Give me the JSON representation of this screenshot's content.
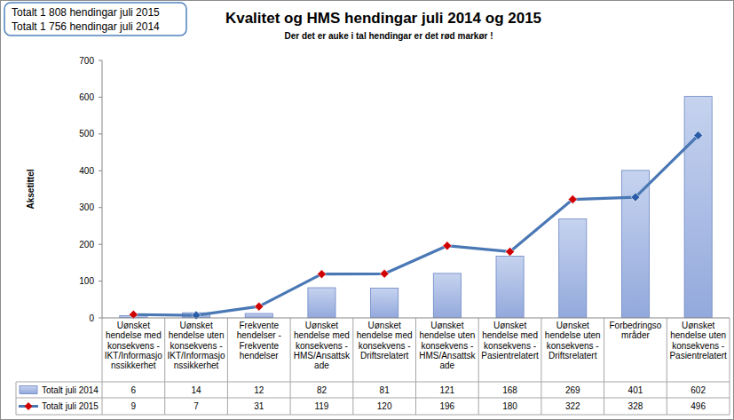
{
  "chart_data": {
    "type": "bar",
    "title": "Kvalitet og HMS hendingar juli 2014 og 2015",
    "subtitle": "Der det er auke i tal hendingar er det rød markør !",
    "annotations": [
      "Totalt 1 808 hendingar juli 2015",
      "Totalt 1 756 hendingar juli 2014"
    ],
    "ylabel": "Aksetittel",
    "categories": [
      "Uønsket hendelse med konsekvens - IKT/Informasjonssikkerhet",
      "Uønsket hendelse uten konsekvens - IKT/Informasjonssikkerhet",
      "Frekvente hendelser - Frekvente hendelser",
      "Uønsket hendelse med konsekvens - HMS/Ansattskade",
      "Uønsket hendelse med konsekvens - Driftsrelatert",
      "Uønsket hendelse uten konsekvens - HMS/Ansattskade",
      "Uønsket hendelse med konsekvens - Pasientrelatert",
      "Uønsket hendelse uten konsekvens - Driftsrelatert",
      "Forbedringsområder",
      "Uønsket hendelse uten konsekvens - Pasientrelatert"
    ],
    "series": [
      {
        "name": "Totalt juli 2014",
        "type": "bar",
        "color": "#93a9dc",
        "values": [
          6,
          14,
          12,
          82,
          81,
          121,
          168,
          269,
          401,
          602
        ]
      },
      {
        "name": "Totalt juli 2015",
        "type": "line",
        "color": "#4a78b5",
        "marker": "diamond",
        "line_style": "solid",
        "colors": [
          "#d00000",
          "#2a5caa",
          "#d00000",
          "#d00000",
          "#d00000",
          "#d00000",
          "#d00000",
          "#d00000",
          "#2a5caa",
          "#2a5caa"
        ],
        "values": [
          9,
          7,
          31,
          119,
          120,
          196,
          180,
          322,
          328,
          496
        ]
      }
    ],
    "ylim": [
      0,
      700
    ],
    "yticks": [
      0,
      100,
      200,
      300,
      400,
      500,
      600,
      700
    ],
    "grid": false,
    "data_labels": true
  }
}
